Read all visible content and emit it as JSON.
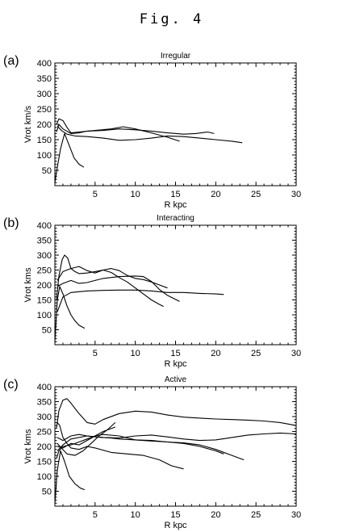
{
  "figure_title": "Fig. 4",
  "chart_data": [
    {
      "type": "line",
      "panel_label": "(a)",
      "title": "Irregular",
      "xlabel": "R kpc",
      "ylabel": "Vrot km/s",
      "xlim": [
        0,
        30
      ],
      "ylim": [
        0,
        400
      ],
      "xticks": [
        5,
        10,
        15,
        20,
        25,
        30
      ],
      "yticks": [
        50,
        100,
        150,
        200,
        250,
        300,
        350,
        400
      ],
      "series": [
        {
          "x": [
            0.0,
            0.3,
            0.7,
            1.2,
            1.8,
            2.4,
            3.0,
            3.6
          ],
          "y": [
            10,
            60,
            120,
            170,
            130,
            90,
            70,
            60
          ]
        },
        {
          "x": [
            0.2,
            0.5,
            1.0,
            2.0,
            3.0,
            4.0,
            6.0,
            8.0,
            10.0,
            12.0,
            14.0,
            16.0,
            17.5,
            19.0,
            19.8
          ],
          "y": [
            175,
            200,
            185,
            170,
            172,
            178,
            180,
            185,
            182,
            178,
            172,
            168,
            170,
            175,
            170
          ]
        },
        {
          "x": [
            0.2,
            0.5,
            1.0,
            1.5,
            2.0,
            3.0,
            5.0,
            7.0,
            8.5,
            10.0,
            12.0,
            14.0,
            15.5
          ],
          "y": [
            200,
            218,
            212,
            190,
            172,
            175,
            180,
            185,
            192,
            185,
            172,
            158,
            145
          ]
        },
        {
          "x": [
            0.3,
            0.8,
            1.5,
            2.5,
            4.0,
            6.0,
            8.0,
            10.0,
            12.0,
            14.0,
            16.0,
            18.0,
            20.0,
            22.0,
            23.3
          ],
          "y": [
            195,
            180,
            168,
            162,
            160,
            155,
            148,
            150,
            155,
            162,
            160,
            155,
            150,
            145,
            140
          ]
        }
      ]
    },
    {
      "type": "line",
      "panel_label": "(b)",
      "title": "Interacting",
      "xlabel": "R kpc",
      "ylabel": "Vrot kms",
      "xlim": [
        0,
        30
      ],
      "ylim": [
        0,
        400
      ],
      "xticks": [
        5,
        10,
        15,
        20,
        25,
        30
      ],
      "yticks": [
        50,
        100,
        150,
        200,
        250,
        300,
        350,
        400
      ],
      "series": [
        {
          "x": [
            0.0,
            0.3,
            0.6,
            1.0,
            1.5,
            2.0,
            2.5,
            3.0,
            3.7
          ],
          "y": [
            10,
            150,
            195,
            170,
            130,
            100,
            80,
            65,
            55
          ]
        },
        {
          "x": [
            0.2,
            0.5,
            0.9,
            1.2,
            1.6,
            2.0,
            2.5,
            3.0,
            4.0,
            5.0,
            6.0,
            7.0,
            8.0,
            9.0,
            10.0,
            11.0,
            12.0,
            13.0,
            13.5
          ],
          "y": [
            150,
            230,
            285,
            300,
            290,
            255,
            245,
            238,
            240,
            245,
            250,
            242,
            225,
            210,
            190,
            170,
            150,
            135,
            128
          ]
        },
        {
          "x": [
            0.3,
            1.0,
            2.0,
            3.0,
            4.0,
            5.0,
            6.0,
            7.0,
            8.0,
            9.0,
            10.0,
            11.0,
            12.0,
            13.0,
            14.0
          ],
          "y": [
            215,
            245,
            255,
            262,
            248,
            240,
            250,
            255,
            248,
            232,
            222,
            218,
            210,
            200,
            190
          ]
        },
        {
          "x": [
            0.3,
            1.0,
            2.0,
            3.0,
            4.0,
            5.0,
            6.0,
            8.0,
            10.0,
            11.0,
            12.0,
            13.0,
            14.0,
            15.5
          ],
          "y": [
            195,
            205,
            215,
            205,
            208,
            215,
            222,
            228,
            230,
            228,
            212,
            185,
            165,
            145
          ]
        },
        {
          "x": [
            0.3,
            1.0,
            2.0,
            4.0,
            6.0,
            8.0,
            10.0,
            12.0,
            14.0,
            16.0,
            18.0,
            20.0,
            21.0
          ],
          "y": [
            110,
            160,
            175,
            180,
            182,
            183,
            183,
            180,
            175,
            175,
            172,
            170,
            168
          ]
        }
      ]
    },
    {
      "type": "line",
      "panel_label": "(c)",
      "title": "Active",
      "xlabel": "R kpc",
      "ylabel": "Vrot kms",
      "xlim": [
        0,
        30
      ],
      "ylim": [
        0,
        400
      ],
      "xticks": [
        5,
        10,
        15,
        20,
        25,
        30
      ],
      "yticks": [
        50,
        100,
        150,
        200,
        250,
        300,
        350,
        400
      ],
      "series": [
        {
          "x": [
            0.0,
            0.3,
            0.7,
            1.2,
            1.8,
            2.5,
            3.2,
            3.7
          ],
          "y": [
            10,
            120,
            185,
            150,
            100,
            75,
            60,
            55
          ]
        },
        {
          "x": [
            0.2,
            0.5,
            1.0,
            1.5,
            2.0,
            3.0,
            4.0,
            5.0,
            6.0,
            8.0,
            10.0,
            12.0,
            14.0,
            16.0,
            18.0,
            20.0,
            22.0,
            24.0,
            26.0,
            28.0,
            30.0
          ],
          "y": [
            260,
            320,
            355,
            360,
            345,
            310,
            280,
            275,
            290,
            310,
            318,
            315,
            305,
            298,
            295,
            292,
            290,
            288,
            285,
            280,
            270
          ]
        },
        {
          "x": [
            0.2,
            0.5,
            1.0,
            2.0,
            3.0,
            4.0,
            5.0,
            6.0,
            7.5
          ],
          "y": [
            160,
            185,
            200,
            205,
            215,
            225,
            235,
            250,
            265
          ]
        },
        {
          "x": [
            0.3,
            0.6,
            1.0,
            1.5,
            2.0,
            3.0,
            4.0,
            5.0,
            7.0,
            9.0,
            11.0,
            13.0,
            14.5,
            16.0
          ],
          "y": [
            280,
            270,
            230,
            210,
            195,
            190,
            200,
            195,
            180,
            175,
            170,
            155,
            135,
            125
          ]
        },
        {
          "x": [
            0.3,
            1.0,
            2.0,
            3.0,
            4.0,
            5.0,
            6.0,
            7.0,
            8.0,
            10.0,
            12.0,
            14.0,
            16.0,
            18.0,
            20.0,
            21.0
          ],
          "y": [
            230,
            220,
            235,
            240,
            235,
            232,
            230,
            228,
            225,
            222,
            220,
            215,
            210,
            200,
            185,
            175
          ]
        },
        {
          "x": [
            0.3,
            1.0,
            2.0,
            3.0,
            4.0,
            5.0,
            6.0,
            8.0,
            10.0,
            12.0,
            14.0,
            16.0,
            18.0,
            20.0,
            22.0,
            23.5
          ],
          "y": [
            200,
            195,
            210,
            205,
            220,
            235,
            240,
            235,
            222,
            218,
            215,
            212,
            205,
            190,
            170,
            155
          ]
        },
        {
          "x": [
            0.3,
            1.0,
            2.0,
            4.0,
            6.0,
            8.0,
            10.0,
            12.0,
            14.0,
            16.0,
            18.0,
            20.0,
            22.0,
            24.0,
            26.0,
            28.0,
            30.0
          ],
          "y": [
            185,
            205,
            225,
            235,
            230,
            228,
            235,
            238,
            232,
            225,
            220,
            222,
            230,
            238,
            242,
            245,
            242
          ]
        },
        {
          "x": [
            0.3,
            0.8,
            1.5,
            2.5,
            3.5,
            4.5,
            5.5,
            6.5,
            7.5
          ],
          "y": [
            210,
            195,
            175,
            170,
            185,
            210,
            235,
            255,
            280
          ]
        }
      ]
    }
  ]
}
